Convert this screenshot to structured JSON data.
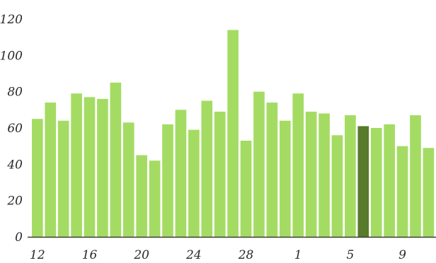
{
  "chart_data": {
    "type": "bar",
    "title": "",
    "xlabel": "",
    "ylabel": "",
    "ylim": [
      0,
      120
    ],
    "yticks": [
      0,
      20,
      40,
      60,
      80,
      100,
      120
    ],
    "grid": false,
    "legend": "none",
    "categories": [
      "12",
      "13",
      "14",
      "15",
      "16",
      "17",
      "18",
      "19",
      "20",
      "21",
      "22",
      "23",
      "24",
      "25",
      "26",
      "27",
      "28",
      "29",
      "30",
      "31",
      "1",
      "2",
      "3",
      "4",
      "5",
      "6",
      "7",
      "8",
      "9",
      "10",
      "11"
    ],
    "xtick_labels": [
      "12",
      "16",
      "20",
      "24",
      "28",
      "1",
      "5",
      "9"
    ],
    "values": [
      65,
      74,
      64,
      79,
      77,
      76,
      85,
      63,
      45,
      42,
      62,
      70,
      59,
      75,
      69,
      114,
      53,
      80,
      74,
      64,
      79,
      69,
      68,
      56,
      67,
      61,
      60,
      62,
      50,
      67,
      49
    ],
    "highlight_index": 25,
    "colors": {
      "bar": "#a4dc63",
      "highlight": "#587a2b",
      "axis": "#3a3a3a",
      "text": "#2a2a2a"
    }
  }
}
